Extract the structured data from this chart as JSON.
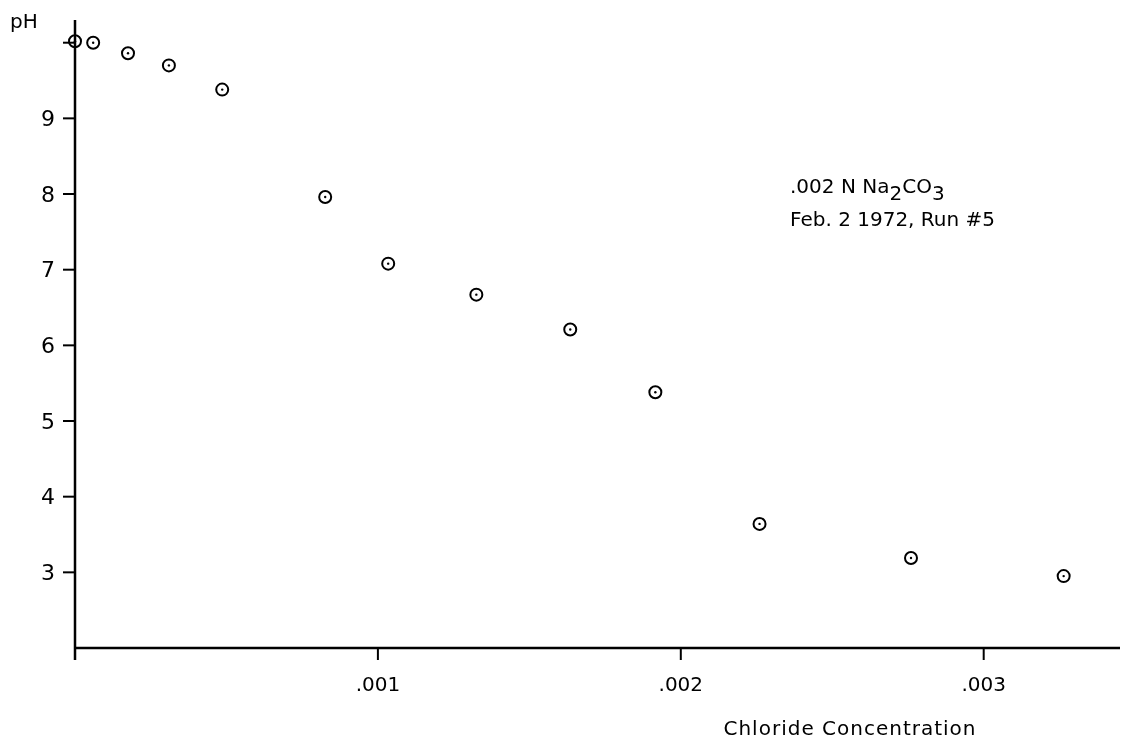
{
  "chart_data": {
    "type": "scatter",
    "xlabel": "Chloride Concentration",
    "ylabel": "pH",
    "x": [
      0,
      6e-05,
      0.000175,
      0.00031,
      0.000486,
      0.000826,
      0.001034,
      0.001325,
      0.001635,
      0.001916,
      0.00226,
      0.00276,
      0.003264
    ],
    "values": [
      10.02,
      10.0,
      9.86,
      9.7,
      9.38,
      7.96,
      7.08,
      6.67,
      6.21,
      5.38,
      3.64,
      3.19,
      2.95
    ],
    "color": "#000000",
    "marker": "circle",
    "xlim": [
      0,
      0.00345
    ],
    "ylim": [
      2,
      10.3
    ],
    "xticks": [
      {
        "value": 0,
        "label": null
      },
      {
        "value": 0.001,
        "label": ".001"
      },
      {
        "value": 0.002,
        "label": ".002"
      },
      {
        "value": 0.003,
        "label": ".003"
      }
    ],
    "yticks": [
      3,
      4,
      5,
      6,
      7,
      8,
      9,
      {
        "value": 10,
        "label": null
      }
    ],
    "annotations": [
      ".002 N Na$_{2}$CO$_{3}$",
      "Feb. 2 1972, Run #5"
    ]
  }
}
